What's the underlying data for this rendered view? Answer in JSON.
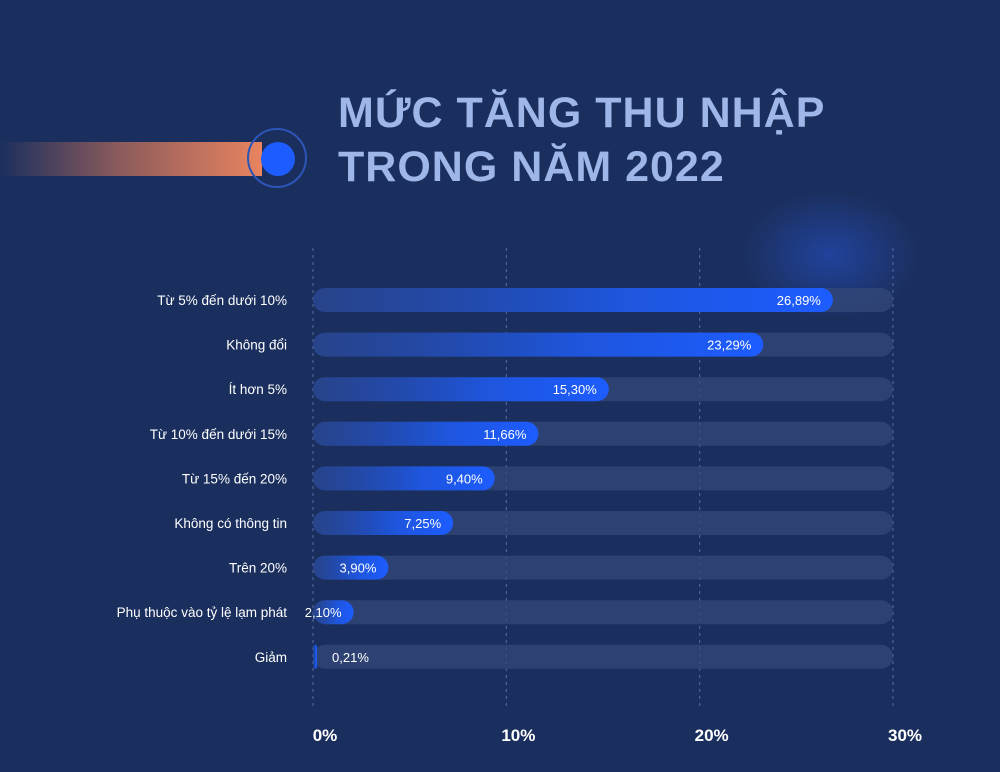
{
  "title": {
    "line1": "MỨC TĂNG THU NHẬP",
    "line2": "TRONG NĂM 2022"
  },
  "colors": {
    "background": "#1b2f5e",
    "bar": "#1d5cff",
    "track": "#34497a",
    "accent": "#e9845f",
    "title": "#9eb6e8"
  },
  "chart_data": {
    "type": "bar",
    "orientation": "horizontal",
    "categories": [
      "Từ 5% đến dưới 10%",
      "Không đổi",
      "Ít hơn 5%",
      "Từ 10% đến dưới 15%",
      "Từ 15% đến 20%",
      "Không có thông tin",
      "Trên 20%",
      "Phụ thuộc vào tỷ lệ lạm phát",
      "Giảm"
    ],
    "values": [
      26.89,
      23.29,
      15.3,
      11.66,
      9.4,
      7.25,
      3.9,
      2.1,
      0.21
    ],
    "value_labels": [
      "26,89%",
      "23,29%",
      "15,30%",
      "11,66%",
      "9,40%",
      "7,25%",
      "3,90%",
      "2,10%",
      "0,21%"
    ],
    "xlim": [
      0,
      30
    ],
    "xticks": [
      0,
      10,
      20,
      30
    ],
    "xtick_labels": [
      "0%",
      "10%",
      "20%",
      "30%"
    ],
    "grid": "vertical dashed",
    "legend": "none"
  }
}
